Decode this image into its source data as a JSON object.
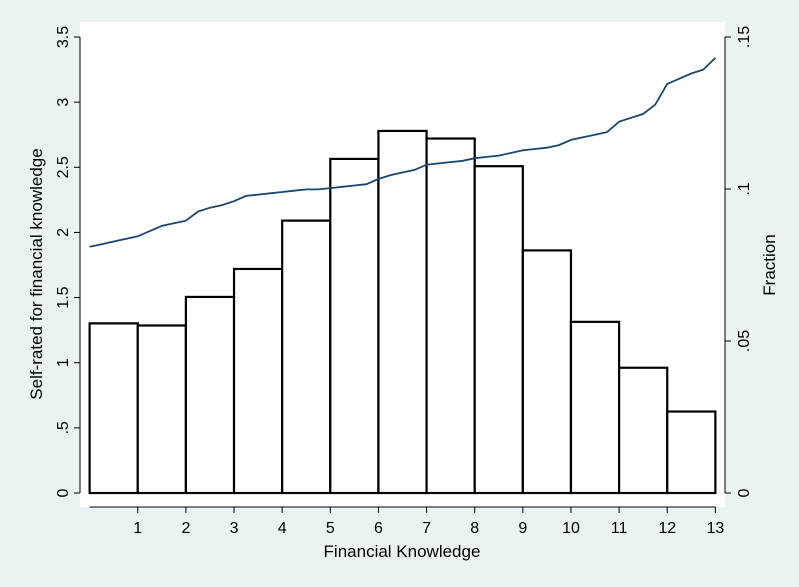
{
  "colors": {
    "background": "#eaf2f3",
    "plot_area": "#ffffff",
    "bar_fill": "#ffffff",
    "bar_stroke": "#000000",
    "line": "#1a476f",
    "axis": "#000000"
  },
  "chart_data": {
    "type": "bar",
    "xlabel": "Financial Knowledge",
    "ylabel_left": "Self-rated for financial knowledge",
    "ylabel_right": "Fraction",
    "x_ticks": [
      "1",
      "2",
      "3",
      "4",
      "5",
      "6",
      "7",
      "8",
      "9",
      "10",
      "11",
      "12",
      "13"
    ],
    "xlim": [
      -0.2,
      13.2
    ],
    "left_axis": {
      "range": [
        0,
        3.5
      ],
      "ticks": [
        {
          "value": 0,
          "label": "0"
        },
        {
          "value": 0.5,
          "label": ".5"
        },
        {
          "value": 1,
          "label": "1"
        },
        {
          "value": 1.5,
          "label": "1.5"
        },
        {
          "value": 2,
          "label": "2"
        },
        {
          "value": 2.5,
          "label": "2.5"
        },
        {
          "value": 3,
          "label": "3"
        },
        {
          "value": 3.5,
          "label": "3.5"
        }
      ]
    },
    "right_axis": {
      "range": [
        0,
        0.15
      ],
      "ticks": [
        {
          "value": 0,
          "label": "0"
        },
        {
          "value": 0.05,
          "label": ".05"
        },
        {
          "value": 0.1,
          "label": ".1"
        },
        {
          "value": 0.15,
          "label": ".15"
        }
      ]
    },
    "histogram": {
      "axis": "right",
      "bin_start": 0,
      "bin_width": 1,
      "fractions": [
        0.0558,
        0.0551,
        0.0645,
        0.0737,
        0.0896,
        0.1099,
        0.1191,
        0.1166,
        0.1075,
        0.0798,
        0.0563,
        0.0412,
        0.0268
      ]
    },
    "line_series": {
      "axis": "left",
      "x": [
        0,
        0.25,
        0.5,
        0.75,
        1,
        1.25,
        1.5,
        1.75,
        2,
        2.25,
        2.5,
        2.75,
        3,
        3.25,
        3.5,
        3.75,
        4,
        4.25,
        4.5,
        4.75,
        5,
        5.25,
        5.5,
        5.75,
        6,
        6.25,
        6.5,
        6.75,
        7,
        7.25,
        7.5,
        7.75,
        8,
        8.25,
        8.5,
        8.75,
        9,
        9.25,
        9.5,
        9.75,
        10,
        10.25,
        10.5,
        10.75,
        11,
        11.25,
        11.5,
        11.75,
        12,
        12.25,
        12.5,
        12.75,
        13
      ],
      "y": [
        1.89,
        1.91,
        1.93,
        1.95,
        1.97,
        2.01,
        2.05,
        2.07,
        2.09,
        2.16,
        2.19,
        2.21,
        2.24,
        2.28,
        2.29,
        2.3,
        2.31,
        2.32,
        2.33,
        2.33,
        2.34,
        2.35,
        2.36,
        2.37,
        2.41,
        2.44,
        2.46,
        2.48,
        2.52,
        2.53,
        2.54,
        2.55,
        2.57,
        2.58,
        2.59,
        2.61,
        2.63,
        2.64,
        2.65,
        2.67,
        2.71,
        2.73,
        2.75,
        2.77,
        2.85,
        2.88,
        2.91,
        2.98,
        3.14,
        3.18,
        3.22,
        3.25,
        3.34
      ]
    },
    "grid": false,
    "legend": "none"
  }
}
